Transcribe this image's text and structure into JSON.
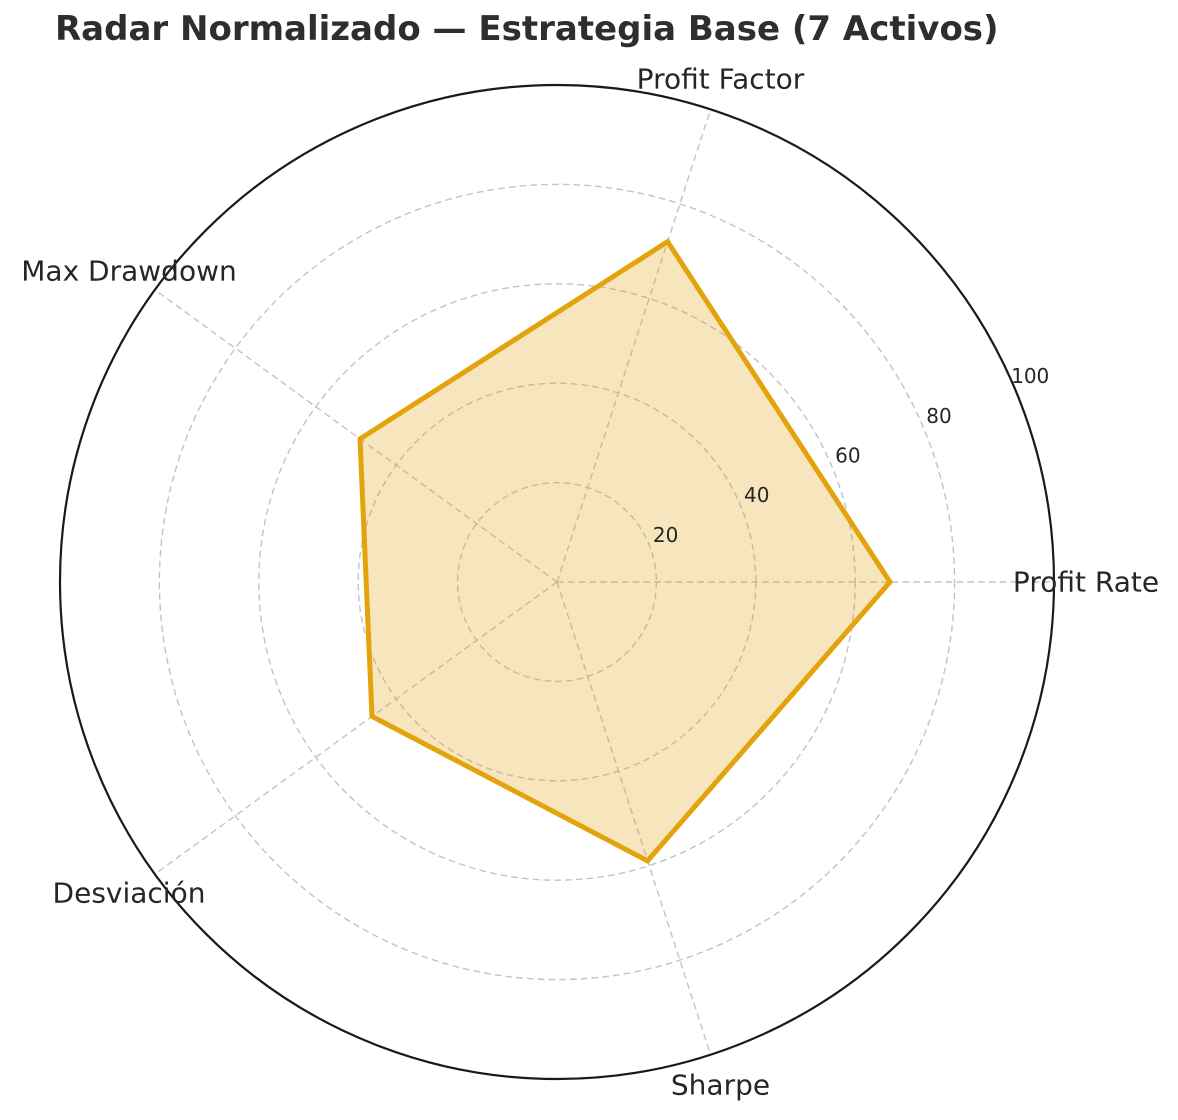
{
  "title": "Radar Normalizado — Estrategia Base (7 Activos)",
  "chart_data": {
    "type": "radar",
    "title": "Radar Normalizado — Estrategia Base (7 Activos)",
    "categories": [
      "Profit Rate",
      "Profit Factor",
      "Max Drawdown",
      "Desviación",
      "Sharpe"
    ],
    "angles_deg": [
      0,
      72,
      144,
      216,
      288
    ],
    "series": [
      {
        "name": "Estrategia Base",
        "values": [
          67,
          72,
          49,
          46,
          59
        ]
      }
    ],
    "r_axis": {
      "min": 0,
      "max": 100,
      "ticks": [
        20,
        40,
        60,
        80,
        100
      ],
      "tick_label_angle_deg": 23.5
    },
    "grid": true,
    "grid_style": "dashed",
    "legend": false,
    "style": {
      "line_color": "#e3a30c",
      "fill_color": "rgba(227,163,12,0.27)",
      "grid_color": "#c3c3c3",
      "outline_color": "#1a1a1a",
      "text_color": "#262626",
      "title_color": "#2e2e2e"
    }
  }
}
